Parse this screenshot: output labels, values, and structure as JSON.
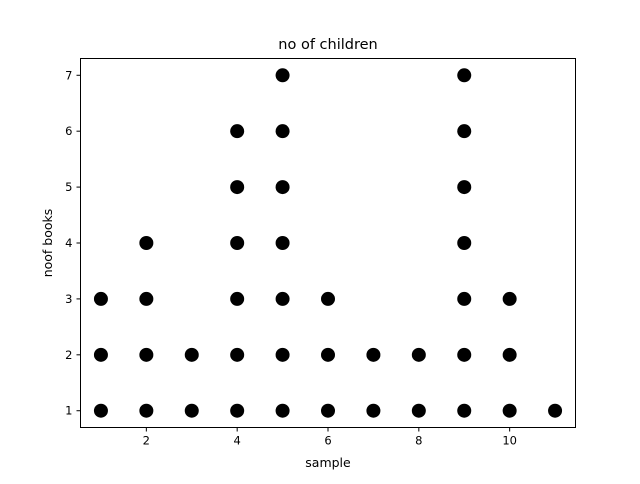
{
  "chart_data": {
    "type": "scatter",
    "title": "no of children",
    "xlabel": "sample",
    "ylabel": "noof books",
    "xlim": [
      0.55,
      11.45
    ],
    "ylim": [
      0.7,
      7.3
    ],
    "xticks": [
      2,
      4,
      6,
      8,
      10
    ],
    "yticks": [
      1,
      2,
      3,
      4,
      5,
      6,
      7
    ],
    "grid": false,
    "legend": "none",
    "marker_color": "#000000",
    "points": [
      {
        "x": 1,
        "y": 1
      },
      {
        "x": 1,
        "y": 2
      },
      {
        "x": 1,
        "y": 3
      },
      {
        "x": 2,
        "y": 1
      },
      {
        "x": 2,
        "y": 2
      },
      {
        "x": 2,
        "y": 3
      },
      {
        "x": 2,
        "y": 4
      },
      {
        "x": 3,
        "y": 1
      },
      {
        "x": 3,
        "y": 2
      },
      {
        "x": 4,
        "y": 1
      },
      {
        "x": 4,
        "y": 2
      },
      {
        "x": 4,
        "y": 3
      },
      {
        "x": 4,
        "y": 4
      },
      {
        "x": 4,
        "y": 5
      },
      {
        "x": 4,
        "y": 6
      },
      {
        "x": 5,
        "y": 1
      },
      {
        "x": 5,
        "y": 2
      },
      {
        "x": 5,
        "y": 3
      },
      {
        "x": 5,
        "y": 4
      },
      {
        "x": 5,
        "y": 5
      },
      {
        "x": 5,
        "y": 6
      },
      {
        "x": 5,
        "y": 7
      },
      {
        "x": 6,
        "y": 1
      },
      {
        "x": 6,
        "y": 2
      },
      {
        "x": 6,
        "y": 3
      },
      {
        "x": 7,
        "y": 1
      },
      {
        "x": 7,
        "y": 2
      },
      {
        "x": 8,
        "y": 1
      },
      {
        "x": 8,
        "y": 2
      },
      {
        "x": 9,
        "y": 1
      },
      {
        "x": 9,
        "y": 2
      },
      {
        "x": 9,
        "y": 3
      },
      {
        "x": 9,
        "y": 4
      },
      {
        "x": 9,
        "y": 5
      },
      {
        "x": 9,
        "y": 6
      },
      {
        "x": 9,
        "y": 7
      },
      {
        "x": 10,
        "y": 1
      },
      {
        "x": 10,
        "y": 2
      },
      {
        "x": 10,
        "y": 3
      },
      {
        "x": 11,
        "y": 1
      }
    ]
  }
}
